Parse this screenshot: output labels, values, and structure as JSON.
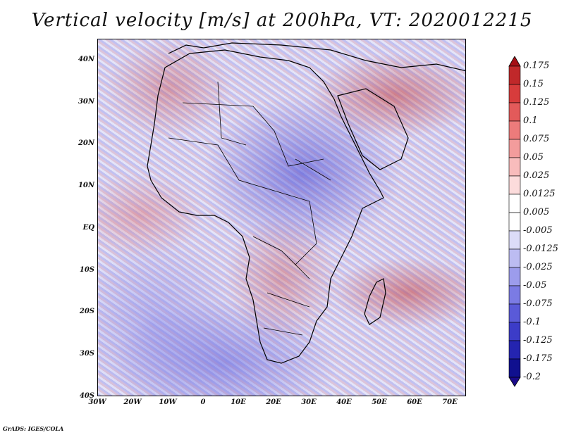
{
  "title": "Vertical velocity [m/s] at 200hPa, VT: 2020012215",
  "map": {
    "lat_labels": [
      "40N",
      "30N",
      "20N",
      "10N",
      "EQ",
      "10S",
      "20S",
      "30S",
      "40S"
    ],
    "lon_labels": [
      "30W",
      "20W",
      "10W",
      "0",
      "10E",
      "20E",
      "30E",
      "40E",
      "50E",
      "60E",
      "70E"
    ],
    "lat_range": [
      -40,
      45
    ],
    "lon_range": [
      -30,
      75
    ]
  },
  "colorbar": {
    "labels": [
      "0.175",
      "0.15",
      "0.125",
      "0.1",
      "0.075",
      "0.05",
      "0.025",
      "0.0125",
      "0.005",
      "-0.005",
      "-0.0125",
      "-0.025",
      "-0.05",
      "-0.075",
      "-0.1",
      "-0.125",
      "-0.175",
      "-0.2"
    ],
    "colors": [
      "#a50f15",
      "#c0282a",
      "#d73c3c",
      "#e35a5a",
      "#ec7b7b",
      "#f39c9c",
      "#f8bcbc",
      "#fcdcdc",
      "#ffffff",
      "#ffffff",
      "#dcdcf8",
      "#bcbcf2",
      "#9c9cec",
      "#7b7be4",
      "#5a5ad8",
      "#3c3cc8",
      "#2424b0",
      "#10108f",
      "#1a0a8a"
    ]
  },
  "footer": "GrADS: IGES/COLA"
}
